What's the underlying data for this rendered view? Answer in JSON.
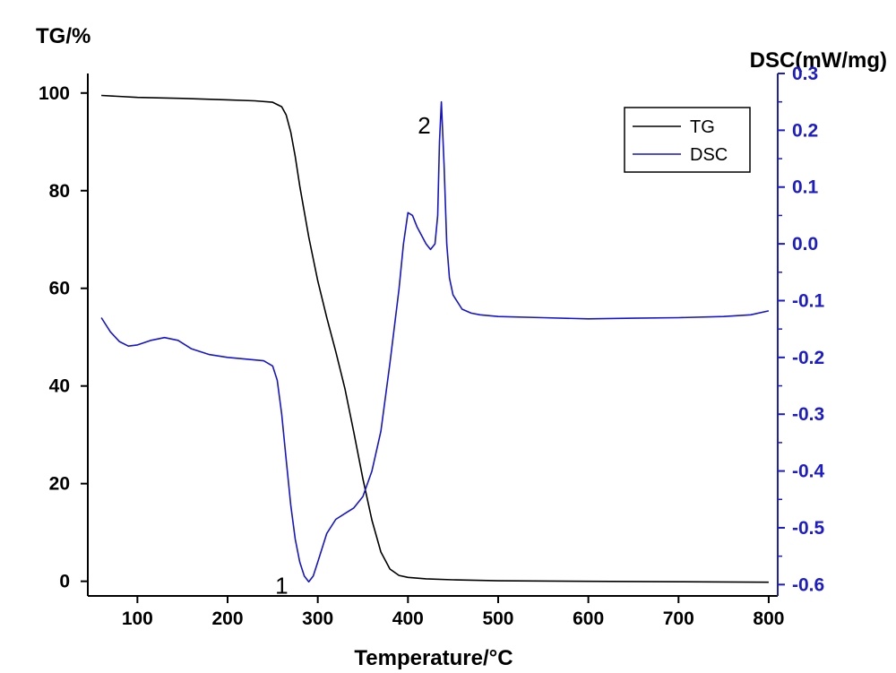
{
  "chart_data": {
    "type": "line",
    "xlabel": "Temperature/°C",
    "ylabel_left": "TG/%",
    "ylabel_right": "DSC(mW/mg)",
    "xlim": [
      45,
      810
    ],
    "ylim_left": [
      -3,
      104
    ],
    "ylim_right": [
      -0.62,
      0.3
    ],
    "x_ticks": [
      100,
      200,
      300,
      400,
      500,
      600,
      700,
      800
    ],
    "y_left_ticks": [
      0,
      20,
      40,
      60,
      80,
      100
    ],
    "y_right_ticks": [
      -0.6,
      -0.5,
      -0.4,
      -0.3,
      -0.2,
      -0.1,
      0.0,
      0.1,
      0.2,
      0.3
    ],
    "y_right_tick_labels": [
      "-0.6",
      "-0.5",
      "-0.4",
      "-0.3",
      "-0.2",
      "-0.1",
      "0.0",
      "0.1",
      "0.2",
      "0.3"
    ],
    "colors": {
      "TG": "#000000",
      "DSC": "#1414d2",
      "right_axis": "#1c1cc8"
    },
    "legend": {
      "position": "top-right",
      "entries": [
        "TG",
        "DSC"
      ]
    },
    "annotations": [
      {
        "text": "1",
        "x": 260,
        "y_dsc": -0.6
      },
      {
        "text": "2",
        "x": 418,
        "y_dsc": 0.21
      }
    ],
    "series": [
      {
        "name": "TG",
        "axis": "left",
        "x": [
          60,
          100,
          150,
          200,
          230,
          250,
          260,
          265,
          270,
          275,
          280,
          290,
          300,
          310,
          320,
          330,
          340,
          350,
          360,
          370,
          380,
          390,
          400,
          420,
          450,
          500,
          600,
          700,
          800
        ],
        "y": [
          99.5,
          99.1,
          98.9,
          98.6,
          98.4,
          98.1,
          97.2,
          95.5,
          92.0,
          87.0,
          81.0,
          70.5,
          61.5,
          54.0,
          47.0,
          39.5,
          30.5,
          21.0,
          12.5,
          6.0,
          2.5,
          1.2,
          0.8,
          0.5,
          0.3,
          0.1,
          0.0,
          -0.1,
          -0.2
        ]
      },
      {
        "name": "DSC",
        "axis": "right",
        "x": [
          60,
          70,
          80,
          90,
          100,
          115,
          130,
          145,
          160,
          180,
          200,
          220,
          240,
          250,
          255,
          260,
          265,
          270,
          275,
          280,
          285,
          290,
          295,
          300,
          310,
          320,
          330,
          340,
          350,
          360,
          370,
          380,
          390,
          395,
          400,
          405,
          410,
          420,
          425,
          430,
          433,
          435,
          437,
          440,
          443,
          446,
          450,
          460,
          470,
          480,
          500,
          550,
          600,
          650,
          700,
          750,
          780,
          800
        ],
        "y": [
          -0.13,
          -0.155,
          -0.172,
          -0.18,
          -0.178,
          -0.17,
          -0.165,
          -0.17,
          -0.185,
          -0.195,
          -0.2,
          -0.203,
          -0.206,
          -0.215,
          -0.24,
          -0.3,
          -0.38,
          -0.46,
          -0.52,
          -0.56,
          -0.585,
          -0.595,
          -0.585,
          -0.56,
          -0.51,
          -0.485,
          -0.475,
          -0.465,
          -0.445,
          -0.4,
          -0.33,
          -0.21,
          -0.08,
          0.0,
          0.055,
          0.05,
          0.03,
          0.0,
          -0.01,
          0.0,
          0.05,
          0.18,
          0.25,
          0.14,
          0.0,
          -0.06,
          -0.09,
          -0.115,
          -0.122,
          -0.125,
          -0.128,
          -0.13,
          -0.132,
          -0.131,
          -0.13,
          -0.128,
          -0.125,
          -0.118
        ]
      }
    ]
  }
}
